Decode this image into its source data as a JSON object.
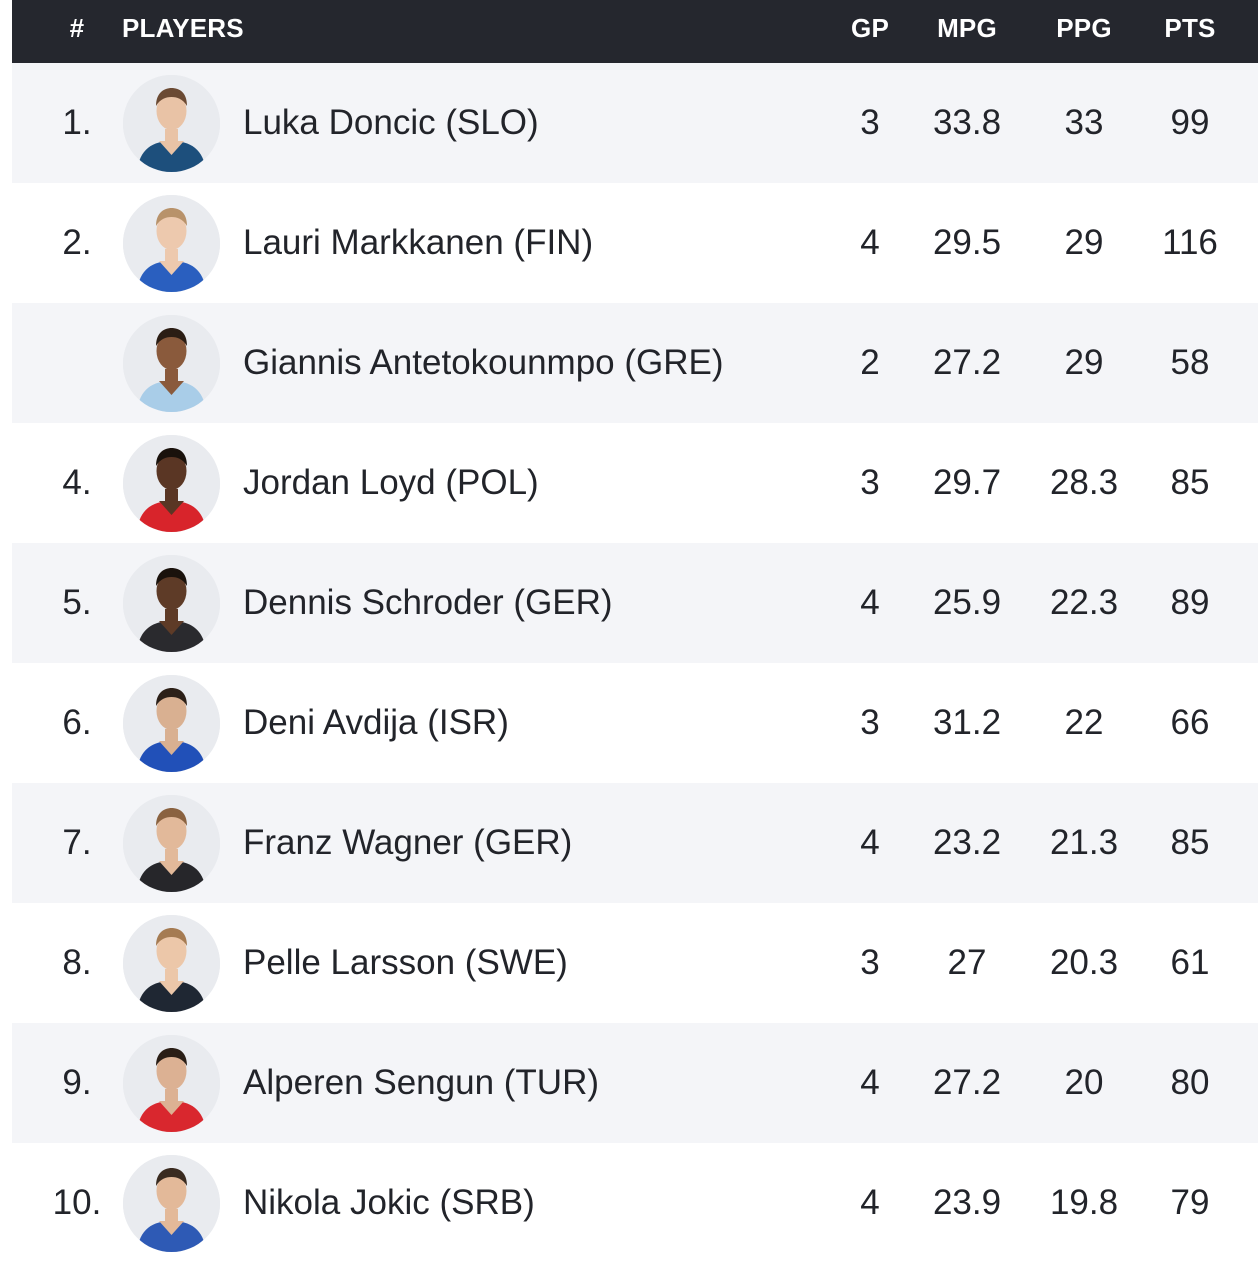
{
  "header": {
    "rank": "#",
    "players": "PLAYERS",
    "gp": "GP",
    "mpg": "MPG",
    "ppg": "PPG",
    "pts": "PTS"
  },
  "rows": [
    {
      "rank": "1.",
      "name": "Luka Doncic (SLO)",
      "gp": "3",
      "mpg": "33.8",
      "ppg": "33",
      "pts": "99",
      "skin": "#e9c3a6",
      "hair": "#6b4a33",
      "jersey": "#1d4f7c"
    },
    {
      "rank": "2.",
      "name": "Lauri Markkanen (FIN)",
      "gp": "4",
      "mpg": "29.5",
      "ppg": "29",
      "pts": "116",
      "skin": "#edc9ae",
      "hair": "#b8926a",
      "jersey": "#2a5fbf"
    },
    {
      "rank": "",
      "name": "Giannis Antetokounmpo (GRE)",
      "gp": "2",
      "mpg": "27.2",
      "ppg": "29",
      "pts": "58",
      "skin": "#8a5a3c",
      "hair": "#2b1d14",
      "jersey": "#a9cde8"
    },
    {
      "rank": "4.",
      "name": "Jordan Loyd (POL)",
      "gp": "3",
      "mpg": "29.7",
      "ppg": "28.3",
      "pts": "85",
      "skin": "#5a3624",
      "hair": "#1a120c",
      "jersey": "#d8242b"
    },
    {
      "rank": "5.",
      "name": "Dennis Schroder (GER)",
      "gp": "4",
      "mpg": "25.9",
      "ppg": "22.3",
      "pts": "89",
      "skin": "#5e3b27",
      "hair": "#1a120c",
      "jersey": "#2a2a2e"
    },
    {
      "rank": "6.",
      "name": "Deni Avdija (ISR)",
      "gp": "3",
      "mpg": "31.2",
      "ppg": "22",
      "pts": "66",
      "skin": "#d9b091",
      "hair": "#2c2018",
      "jersey": "#2150b8"
    },
    {
      "rank": "7.",
      "name": "Franz Wagner (GER)",
      "gp": "4",
      "mpg": "23.2",
      "ppg": "21.3",
      "pts": "85",
      "skin": "#e2b99a",
      "hair": "#8a6240",
      "jersey": "#26262a"
    },
    {
      "rank": "8.",
      "name": "Pelle Larsson (SWE)",
      "gp": "3",
      "mpg": "27",
      "ppg": "20.3",
      "pts": "61",
      "skin": "#ecc7a9",
      "hair": "#a57b52",
      "jersey": "#1f2733"
    },
    {
      "rank": "9.",
      "name": "Alperen Sengun (TUR)",
      "gp": "4",
      "mpg": "27.2",
      "ppg": "20",
      "pts": "80",
      "skin": "#dcb193",
      "hair": "#2a1e16",
      "jersey": "#d9272e"
    },
    {
      "rank": "10.",
      "name": "Nikola Jokic (SRB)",
      "gp": "4",
      "mpg": "23.9",
      "ppg": "19.8",
      "pts": "79",
      "skin": "#e3b999",
      "hair": "#3a2b20",
      "jersey": "#2e5ab5"
    }
  ]
}
